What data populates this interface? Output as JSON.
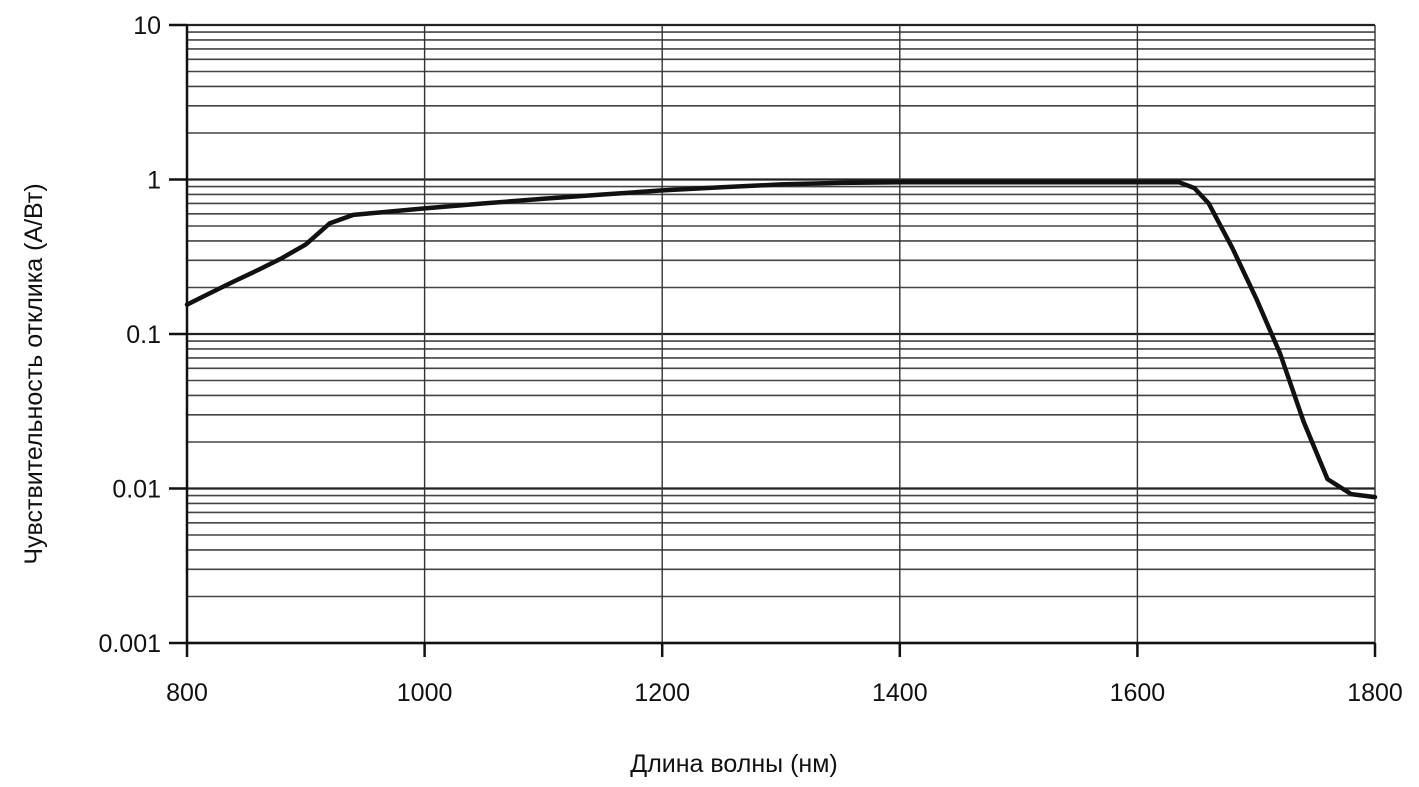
{
  "chart_data": {
    "type": "line",
    "xlabel": "Длина волны (нм)",
    "ylabel": "Чувствительность отклика (А/Вт)",
    "x_scale": "linear",
    "y_scale": "log",
    "xlim": [
      800,
      1800
    ],
    "ylim": [
      0.001,
      10
    ],
    "grid": true,
    "x_ticks": [
      800,
      1000,
      1200,
      1400,
      1600,
      1800
    ],
    "x_tick_labels": [
      "800",
      "1000",
      "1200",
      "1400",
      "1600",
      "1800"
    ],
    "y_ticks": [
      0.001,
      0.01,
      0.1,
      1,
      10
    ],
    "y_tick_labels": [
      "0.001",
      "0.01",
      "0.1",
      "1",
      "10"
    ],
    "series": [
      {
        "points": [
          [
            800,
            0.155
          ],
          [
            820,
            0.185
          ],
          [
            840,
            0.22
          ],
          [
            860,
            0.26
          ],
          [
            880,
            0.31
          ],
          [
            900,
            0.38
          ],
          [
            920,
            0.52
          ],
          [
            940,
            0.59
          ],
          [
            970,
            0.62
          ],
          [
            1000,
            0.65
          ],
          [
            1050,
            0.7
          ],
          [
            1100,
            0.75
          ],
          [
            1150,
            0.8
          ],
          [
            1200,
            0.85
          ],
          [
            1250,
            0.89
          ],
          [
            1300,
            0.93
          ],
          [
            1350,
            0.95
          ],
          [
            1400,
            0.96
          ],
          [
            1450,
            0.96
          ],
          [
            1500,
            0.96
          ],
          [
            1550,
            0.96
          ],
          [
            1600,
            0.96
          ],
          [
            1635,
            0.96
          ],
          [
            1648,
            0.88
          ],
          [
            1660,
            0.7
          ],
          [
            1680,
            0.36
          ],
          [
            1700,
            0.17
          ],
          [
            1720,
            0.075
          ],
          [
            1740,
            0.027
          ],
          [
            1760,
            0.0115
          ],
          [
            1780,
            0.0092
          ],
          [
            1800,
            0.0088
          ]
        ]
      }
    ]
  }
}
